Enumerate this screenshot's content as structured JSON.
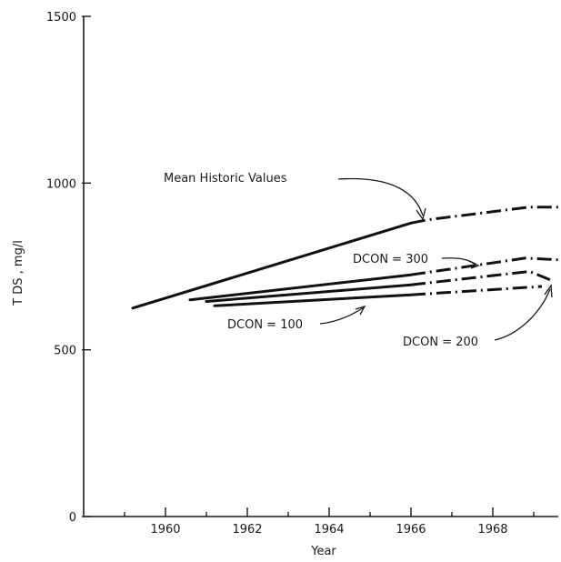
{
  "chart_data": {
    "type": "line",
    "title": "",
    "xlabel": "Year",
    "ylabel": "T DS , mg/l",
    "xlim": [
      1958.0,
      1969.6
    ],
    "ylim": [
      0,
      1500
    ],
    "xticks": [
      1960,
      1962,
      1964,
      1966,
      1968
    ],
    "xtick_labels": [
      "1960",
      "1962",
      "1964",
      "1966",
      "1968"
    ],
    "yticks": [
      0,
      500,
      1000,
      1500
    ],
    "ytick_labels": [
      "0",
      "500",
      "1000",
      "1500"
    ],
    "grid": false,
    "legend": "none",
    "series": [
      {
        "name": "Mean Historic Values",
        "x": [
          1959.2,
          1966.0,
          1966.4,
          1968.9,
          1969.6
        ],
        "y": [
          625,
          880,
          890,
          928,
          928
        ]
      },
      {
        "name": "DCON = 300",
        "x": [
          1960.6,
          1966.0,
          1968.8,
          1969.6
        ],
        "y": [
          650,
          725,
          775,
          770
        ]
      },
      {
        "name": "DCON = 200",
        "x": [
          1961.0,
          1966.0,
          1968.9,
          1969.4
        ],
        "y": [
          645,
          695,
          735,
          710
        ]
      },
      {
        "name": "DCON = 100",
        "x": [
          1961.2,
          1966.0,
          1969.2
        ],
        "y": [
          632,
          665,
          690
        ]
      }
    ],
    "annotations": [
      {
        "text": "Mean Historic Values"
      },
      {
        "text": "DCON = 300"
      },
      {
        "text": "DCON = 100"
      },
      {
        "text": "DCON = 200"
      }
    ]
  }
}
